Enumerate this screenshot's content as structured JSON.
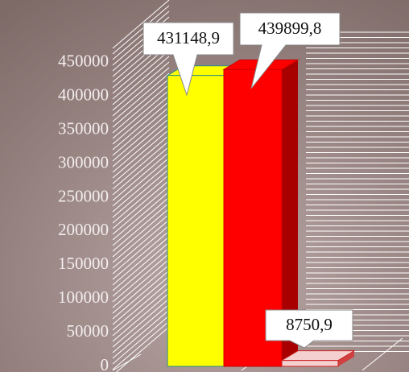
{
  "chart_data": {
    "type": "bar3d",
    "values": [
      431148.9,
      439899.8,
      8750.9
    ],
    "value_labels": [
      "431148,9",
      "439899,8",
      "8750,9"
    ],
    "colors": [
      "#ffff00",
      "#ff0000",
      "#f4d0d0"
    ],
    "ylim": [
      0,
      500000
    ],
    "yticks": [
      0,
      50000,
      100000,
      150000,
      200000,
      250000,
      300000,
      350000,
      400000,
      450000
    ]
  }
}
